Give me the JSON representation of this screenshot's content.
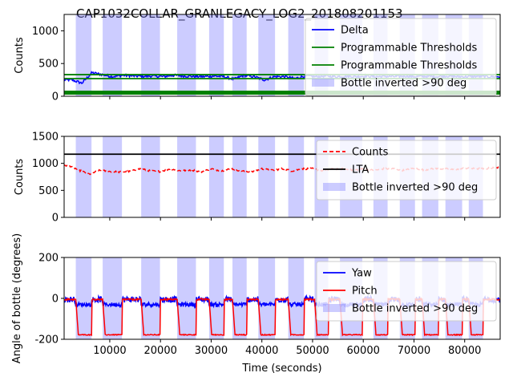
{
  "title": "CAP1032COLLAR_GRANLEGACY_LOG2_201808201153",
  "colors": {
    "delta": "#0000ff",
    "thresholds": "#008000",
    "counts": "#ff0000",
    "lta": "#000000",
    "yaw": "#0000ff",
    "pitch": "#ff0000",
    "inverted_band": "#7f7fff"
  },
  "chart_data": [
    {
      "type": "line",
      "panel": "top",
      "xlim": [
        1000,
        87000
      ],
      "ylim": [
        0,
        1250
      ],
      "yticks": [
        0,
        500,
        1000
      ],
      "ylabel": "Counts",
      "xlabel": "",
      "grid": false,
      "legend_placement": "upper-right",
      "legend": [
        "Delta",
        "Programmable Thresholds",
        "Programmable Thresholds",
        "Bottle inverted >90 deg"
      ],
      "series": [
        {
          "name": "Delta",
          "x": [
            2500,
            4500,
            6500,
            8500,
            10500,
            12500,
            14500,
            16500,
            18500,
            20500,
            22500,
            24500,
            26500,
            28500,
            30500,
            32500,
            34500,
            36500,
            38500,
            40500,
            42500,
            44500,
            46500,
            48500,
            50500,
            52500,
            54500,
            56500,
            58500,
            60500,
            62500,
            64500,
            66500,
            68500,
            70500,
            72500,
            74500,
            76500,
            78500,
            80500,
            82500,
            84500,
            86500
          ],
          "y": [
            250,
            200,
            360,
            330,
            300,
            320,
            310,
            305,
            310,
            300,
            320,
            310,
            305,
            300,
            310,
            300,
            260,
            320,
            300,
            250,
            300,
            300,
            270,
            310,
            300,
            310,
            300,
            305,
            300,
            310,
            300,
            305,
            300,
            310,
            300,
            305,
            300,
            310,
            300,
            300,
            305,
            300,
            300
          ]
        },
        {
          "name": "Programmable Thresholds",
          "x": [
            1000,
            87000
          ],
          "y": [
            330,
            330
          ]
        },
        {
          "name": "Programmable Thresholds",
          "x": [
            1000,
            87000
          ],
          "y": [
            270,
            270
          ]
        },
        {
          "name": "Programmable Thresholds",
          "x": [
            1000,
            87000
          ],
          "y": [
            55,
            55
          ]
        }
      ]
    },
    {
      "type": "line",
      "panel": "middle",
      "xlim": [
        1000,
        87000
      ],
      "ylim": [
        0,
        1500
      ],
      "yticks": [
        0,
        500,
        1000,
        1500
      ],
      "ylabel": "Counts",
      "xlabel": "",
      "grid": false,
      "legend_placement": "upper-right",
      "legend": [
        "Counts",
        "LTA",
        "Bottle inverted >90 deg"
      ],
      "series": [
        {
          "name": "Counts",
          "x": [
            2000,
            4000,
            6000,
            8000,
            10000,
            12000,
            14000,
            16000,
            18000,
            20000,
            22000,
            24000,
            26000,
            28000,
            30000,
            32000,
            34000,
            36000,
            38000,
            40000,
            42000,
            44000,
            46000,
            48000,
            50000,
            52000,
            54000,
            56000,
            58000,
            60000,
            62000,
            64000,
            66000,
            68000,
            70000,
            72000,
            74000,
            76000,
            78000,
            80000,
            82000,
            84000,
            86000
          ],
          "y": [
            960,
            870,
            800,
            870,
            850,
            840,
            850,
            900,
            860,
            850,
            900,
            860,
            880,
            840,
            900,
            860,
            900,
            860,
            840,
            900,
            870,
            900,
            860,
            900,
            900,
            860,
            900,
            900,
            870,
            900,
            870,
            900,
            900,
            870,
            910,
            880,
            900,
            900,
            880,
            910,
            900,
            900,
            920
          ]
        },
        {
          "name": "LTA",
          "x": [
            1000,
            87000
          ],
          "y": [
            1170,
            1170
          ]
        }
      ]
    },
    {
      "type": "line",
      "panel": "bottom",
      "xlim": [
        1000,
        87000
      ],
      "ylim": [
        -200,
        200
      ],
      "yticks": [
        -200,
        0,
        200
      ],
      "xticks": [
        10000,
        20000,
        30000,
        40000,
        50000,
        60000,
        70000,
        80000
      ],
      "ylabel": "Angle of bottle (degrees)",
      "xlabel": "Time (seconds)",
      "grid": false,
      "legend_placement": "upper-right",
      "legend": [
        "Yaw",
        "Pitch",
        "Bottle inverted >90 deg"
      ]
    }
  ],
  "inverted_intervals": [
    [
      3300,
      6400
    ],
    [
      8600,
      12400
    ],
    [
      16200,
      19900
    ],
    [
      23300,
      27000
    ],
    [
      29600,
      32500
    ],
    [
      34200,
      37000
    ],
    [
      39300,
      42600
    ],
    [
      45200,
      48300
    ],
    [
      50400,
      53100
    ],
    [
      55400,
      59800
    ],
    [
      62000,
      64800
    ],
    [
      67200,
      70200
    ],
    [
      71600,
      74800
    ],
    [
      76200,
      79500
    ],
    [
      80800,
      83600
    ]
  ]
}
